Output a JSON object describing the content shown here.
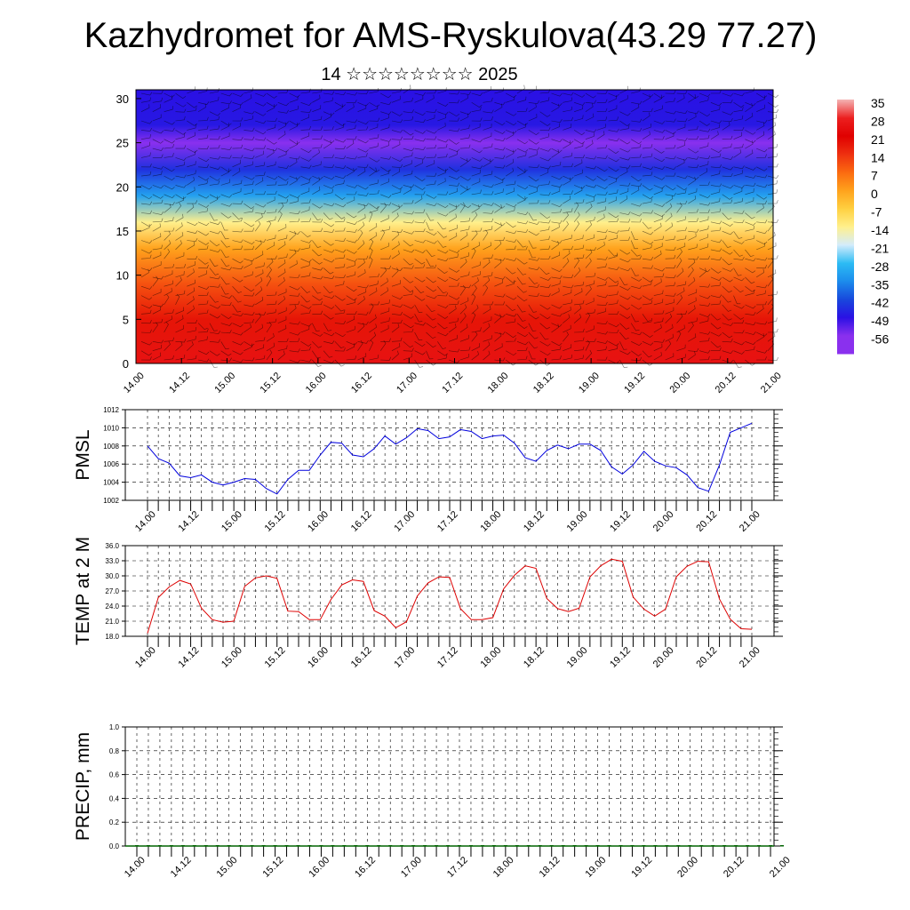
{
  "header": {
    "title": "Kazhydromet for AMS-Ryskulova(43.29 77.27)",
    "subtitle": "14 ☆☆☆☆☆☆☆☆ 2025"
  },
  "chart_data": [
    {
      "type": "heatmap",
      "title": "Kazhydromet for AMS-Ryskulova(43.29 77.27)",
      "subtitle": "14 ☆☆☆☆☆☆☆☆ 2025",
      "x_tick_labels": [
        "14.00",
        "14.12",
        "15.00",
        "15.12",
        "16.00",
        "16.12",
        "17.00",
        "17.12",
        "18.00",
        "18.12",
        "19.00",
        "19.12",
        "20.00",
        "20.12",
        "21.00"
      ],
      "y_ticks": [
        0,
        5,
        10,
        15,
        20,
        25,
        30
      ],
      "ylim": [
        0,
        31
      ],
      "colorbar_labels": [
        "35",
        "28",
        "21",
        "14",
        "7",
        "0",
        "-7",
        "-14",
        "-21",
        "-28",
        "-35",
        "-42",
        "-49",
        "-56"
      ],
      "colorbar_colors": [
        "#f4b4b4",
        "#ec2020",
        "#e00000",
        "#ee3010",
        "#fb6a10",
        "#ffa21c",
        "#ffd040",
        "#fff08c",
        "#d4ecfc",
        "#2cbcf4",
        "#1c8cec",
        "#1848dc",
        "#2a10e4",
        "#8a30ee"
      ],
      "temperature_profile": [
        {
          "height": 0,
          "value": 25
        },
        {
          "height": 5,
          "value": 18
        },
        {
          "height": 9,
          "value": 10
        },
        {
          "height": 13,
          "value": 0
        },
        {
          "height": 16,
          "value": -14
        },
        {
          "height": 19,
          "value": -32
        },
        {
          "height": 22,
          "value": -45
        },
        {
          "height": 25,
          "value": -56
        },
        {
          "height": 27,
          "value": -48
        },
        {
          "height": 31,
          "value": -49
        }
      ],
      "overlay": "wind barbs"
    },
    {
      "type": "line",
      "ylabel": "PMSL",
      "ylim": [
        1002,
        1012
      ],
      "y_ticks": [
        1002,
        1004,
        1006,
        1008,
        1010,
        1012
      ],
      "x_tick_labels": [
        "14.00",
        "14.12",
        "15.00",
        "15.12",
        "16.00",
        "16.12",
        "17.00",
        "17.12",
        "18.00",
        "18.12",
        "19.00",
        "19.12",
        "20.00",
        "20.12",
        "21.00"
      ],
      "color": "#0000dd",
      "series": [
        {
          "values": [
            1008.0,
            1006.6,
            1006.1,
            1004.7,
            1004.5,
            1004.8,
            1004.0,
            1003.7,
            1004.0,
            1004.4,
            1004.3,
            1003.3,
            1002.7,
            1004.3,
            1005.3,
            1005.3,
            1007.0,
            1008.4,
            1008.3,
            1007.0,
            1006.8,
            1007.7,
            1009.1,
            1008.2,
            1008.9,
            1009.9,
            1009.7,
            1008.8,
            1009.0,
            1009.8,
            1009.6,
            1008.8,
            1009.1,
            1009.2,
            1008.3,
            1006.7,
            1006.3,
            1007.5,
            1008.1,
            1007.7,
            1008.2,
            1008.2,
            1007.5,
            1005.7,
            1004.9,
            1005.9,
            1007.4,
            1006.3,
            1005.8,
            1005.6,
            1004.8,
            1003.4,
            1003.0,
            1005.9,
            1009.5,
            1010.0,
            1010.5
          ]
        }
      ]
    },
    {
      "type": "line",
      "ylabel": "TEMP at 2 M",
      "ylim": [
        18,
        36
      ],
      "y_ticks": [
        "18.0",
        "21.0",
        "24.0",
        "27.0",
        "30.0",
        "33.0",
        "36.0"
      ],
      "x_tick_labels": [
        "14.00",
        "14.12",
        "15.00",
        "15.12",
        "16.00",
        "16.12",
        "17.00",
        "17.12",
        "18.00",
        "18.12",
        "19.00",
        "19.12",
        "20.00",
        "20.12",
        "21.00"
      ],
      "color": "#dd0000",
      "series": [
        {
          "values": [
            18.6,
            25.7,
            27.8,
            29.1,
            28.4,
            23.6,
            21.3,
            20.8,
            21.0,
            27.9,
            29.6,
            30.0,
            29.5,
            23.0,
            22.9,
            21.3,
            21.3,
            25.3,
            28.2,
            29.2,
            28.9,
            23.1,
            22.0,
            19.7,
            20.9,
            26.0,
            28.6,
            29.8,
            29.7,
            23.5,
            21.3,
            21.3,
            21.7,
            27.4,
            30.1,
            32.0,
            31.5,
            25.5,
            23.5,
            22.9,
            23.6,
            29.8,
            32.0,
            33.3,
            32.9,
            25.8,
            23.4,
            22.0,
            23.4,
            29.8,
            31.9,
            32.9,
            32.8,
            25.4,
            21.4,
            19.5,
            19.4
          ]
        }
      ]
    },
    {
      "type": "bar",
      "ylabel": "PRECIP, mm",
      "ylim": [
        0,
        1
      ],
      "y_ticks": [
        "0.0",
        "0.2",
        "0.4",
        "0.6",
        "0.8",
        "1.0"
      ],
      "x_tick_labels": [
        "14.00",
        "14.12",
        "15.00",
        "15.12",
        "16.00",
        "16.12",
        "17.00",
        "17.12",
        "18.00",
        "18.12",
        "19.00",
        "19.12",
        "20.00",
        "20.12",
        "21.00"
      ],
      "color": "#006400",
      "values": [
        0,
        0,
        0,
        0,
        0,
        0,
        0,
        0,
        0,
        0,
        0,
        0,
        0,
        0,
        0,
        0,
        0,
        0,
        0,
        0,
        0,
        0,
        0,
        0,
        0,
        0,
        0,
        0,
        0,
        0,
        0,
        0,
        0,
        0,
        0,
        0,
        0,
        0,
        0,
        0,
        0,
        0,
        0,
        0,
        0,
        0,
        0,
        0,
        0,
        0,
        0,
        0,
        0,
        0,
        0,
        0,
        0
      ]
    }
  ]
}
